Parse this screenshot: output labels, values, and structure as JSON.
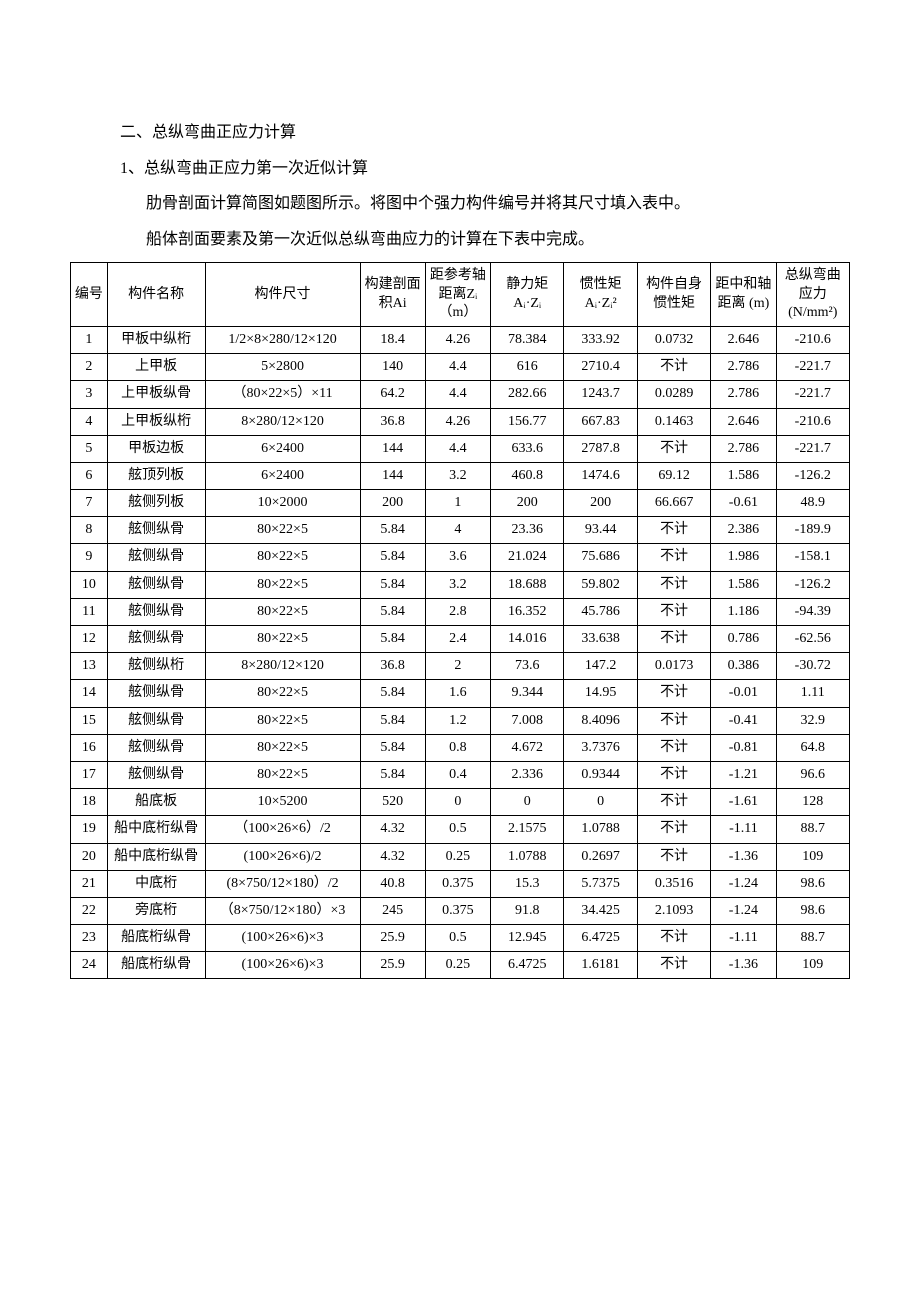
{
  "heading_main": "二、总纵弯曲正应力计算",
  "subheading": "1、总纵弯曲正应力第一次近似计算",
  "para1": "肋骨剖面计算简图如题图所示。将图中个强力构件编号并将其尺寸填入表中。",
  "para2": "船体剖面要素及第一次近似总纵弯曲应力的计算在下表中完成。",
  "table": {
    "columns": [
      "编号",
      "构件名称",
      "构件尺寸",
      "构建剖面积Ai",
      "距参考轴距离Zᵢ（m）",
      "静力矩 Aᵢ·Zᵢ",
      "惯性矩 Aᵢ·Zᵢ²",
      "构件自身惯性矩",
      "距中和轴距离 (m)",
      "总纵弯曲应力 (N/mm²)"
    ],
    "rows": [
      [
        "1",
        "甲板中纵桁",
        "1/2×8×280/12×120",
        "18.4",
        "4.26",
        "78.384",
        "333.92",
        "0.0732",
        "2.646",
        "-210.6"
      ],
      [
        "2",
        "上甲板",
        "5×2800",
        "140",
        "4.4",
        "616",
        "2710.4",
        "不计",
        "2.786",
        "-221.7"
      ],
      [
        "3",
        "上甲板纵骨",
        "（80×22×5）×11",
        "64.2",
        "4.4",
        "282.66",
        "1243.7",
        "0.0289",
        "2.786",
        "-221.7"
      ],
      [
        "4",
        "上甲板纵桁",
        "8×280/12×120",
        "36.8",
        "4.26",
        "156.77",
        "667.83",
        "0.1463",
        "2.646",
        "-210.6"
      ],
      [
        "5",
        "甲板边板",
        "6×2400",
        "144",
        "4.4",
        "633.6",
        "2787.8",
        "不计",
        "2.786",
        "-221.7"
      ],
      [
        "6",
        "舷顶列板",
        "6×2400",
        "144",
        "3.2",
        "460.8",
        "1474.6",
        "69.12",
        "1.586",
        "-126.2"
      ],
      [
        "7",
        "舷侧列板",
        "10×2000",
        "200",
        "1",
        "200",
        "200",
        "66.667",
        "-0.61",
        "48.9"
      ],
      [
        "8",
        "舷侧纵骨",
        "80×22×5",
        "5.84",
        "4",
        "23.36",
        "93.44",
        "不计",
        "2.386",
        "-189.9"
      ],
      [
        "9",
        "舷侧纵骨",
        "80×22×5",
        "5.84",
        "3.6",
        "21.024",
        "75.686",
        "不计",
        "1.986",
        "-158.1"
      ],
      [
        "10",
        "舷侧纵骨",
        "80×22×5",
        "5.84",
        "3.2",
        "18.688",
        "59.802",
        "不计",
        "1.586",
        "-126.2"
      ],
      [
        "11",
        "舷侧纵骨",
        "80×22×5",
        "5.84",
        "2.8",
        "16.352",
        "45.786",
        "不计",
        "1.186",
        "-94.39"
      ],
      [
        "12",
        "舷侧纵骨",
        "80×22×5",
        "5.84",
        "2.4",
        "14.016",
        "33.638",
        "不计",
        "0.786",
        "-62.56"
      ],
      [
        "13",
        "舷侧纵桁",
        "8×280/12×120",
        "36.8",
        "2",
        "73.6",
        "147.2",
        "0.0173",
        "0.386",
        "-30.72"
      ],
      [
        "14",
        "舷侧纵骨",
        "80×22×5",
        "5.84",
        "1.6",
        "9.344",
        "14.95",
        "不计",
        "-0.01",
        "1.11"
      ],
      [
        "15",
        "舷侧纵骨",
        "80×22×5",
        "5.84",
        "1.2",
        "7.008",
        "8.4096",
        "不计",
        "-0.41",
        "32.9"
      ],
      [
        "16",
        "舷侧纵骨",
        "80×22×5",
        "5.84",
        "0.8",
        "4.672",
        "3.7376",
        "不计",
        "-0.81",
        "64.8"
      ],
      [
        "17",
        "舷侧纵骨",
        "80×22×5",
        "5.84",
        "0.4",
        "2.336",
        "0.9344",
        "不计",
        "-1.21",
        "96.6"
      ],
      [
        "18",
        "船底板",
        "10×5200",
        "520",
        "0",
        "0",
        "0",
        "不计",
        "-1.61",
        "128"
      ],
      [
        "19",
        "船中底桁纵骨",
        "（100×26×6）/2",
        "4.32",
        "0.5",
        "2.1575",
        "1.0788",
        "不计",
        "-1.11",
        "88.7"
      ],
      [
        "20",
        "船中底桁纵骨",
        "(100×26×6)/2",
        "4.32",
        "0.25",
        "1.0788",
        "0.2697",
        "不计",
        "-1.36",
        "109"
      ],
      [
        "21",
        "中底桁",
        "(8×750/12×180）/2",
        "40.8",
        "0.375",
        "15.3",
        "5.7375",
        "0.3516",
        "-1.24",
        "98.6"
      ],
      [
        "22",
        "旁底桁",
        "（8×750/12×180）×3",
        "245",
        "0.375",
        "91.8",
        "34.425",
        "2.1093",
        "-1.24",
        "98.6"
      ],
      [
        "23",
        "船底桁纵骨",
        "(100×26×6)×3",
        "25.9",
        "0.5",
        "12.945",
        "6.4725",
        "不计",
        "-1.11",
        "88.7"
      ],
      [
        "24",
        "船底桁纵骨",
        "(100×26×6)×3",
        "25.9",
        "0.25",
        "6.4725",
        "1.6181",
        "不计",
        "-1.36",
        "109"
      ]
    ]
  }
}
